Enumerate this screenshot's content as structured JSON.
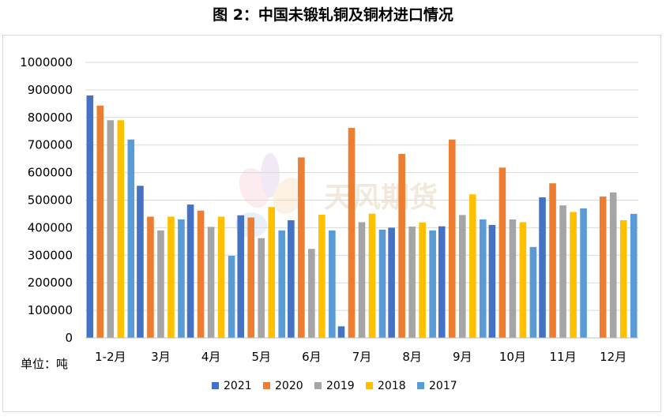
{
  "title": "图 2：中国未锻轧铜及铜材进口情况",
  "unit_label": "单位：吨",
  "watermark": "天风期货",
  "chart_data": {
    "type": "bar",
    "title": "图 2：中国未锻轧铜及铜材进口情况",
    "categories": [
      "1-2月",
      "3月",
      "4月",
      "5月",
      "6月",
      "7月",
      "8月",
      "9月",
      "10月",
      "11月",
      "12月"
    ],
    "series": [
      {
        "name": "2021",
        "color": "#4472c4",
        "values": [
          880000,
          552000,
          484000,
          445000,
          427000,
          42000,
          400000,
          405000,
          410000,
          510000,
          null
        ]
      },
      {
        "name": "2020",
        "color": "#ed7d31",
        "values": [
          843000,
          440000,
          462000,
          437000,
          655000,
          762000,
          668000,
          720000,
          618000,
          561000,
          513000
        ]
      },
      {
        "name": "2019",
        "color": "#a5a5a5",
        "values": [
          790000,
          390000,
          403000,
          362000,
          323000,
          420000,
          404000,
          446000,
          430000,
          481000,
          528000
        ]
      },
      {
        "name": "2018",
        "color": "#ffc000",
        "values": [
          790000,
          440000,
          440000,
          475000,
          447000,
          451000,
          419000,
          521000,
          420000,
          457000,
          427000
        ]
      },
      {
        "name": "2017",
        "color": "#5b9bd5",
        "values": [
          720000,
          430000,
          298000,
          390000,
          390000,
          393000,
          390000,
          430000,
          330000,
          470000,
          450000
        ]
      }
    ],
    "ylim": [
      0,
      1000000
    ],
    "yticks": [
      0,
      100000,
      200000,
      300000,
      400000,
      500000,
      600000,
      700000,
      800000,
      900000,
      1000000
    ],
    "ytick_labels": [
      "0",
      "100000",
      "200000",
      "300000",
      "400000",
      "500000",
      "600000",
      "700000",
      "800000",
      "900000",
      "1000000"
    ],
    "grid": true,
    "legend_position": "bottom"
  }
}
